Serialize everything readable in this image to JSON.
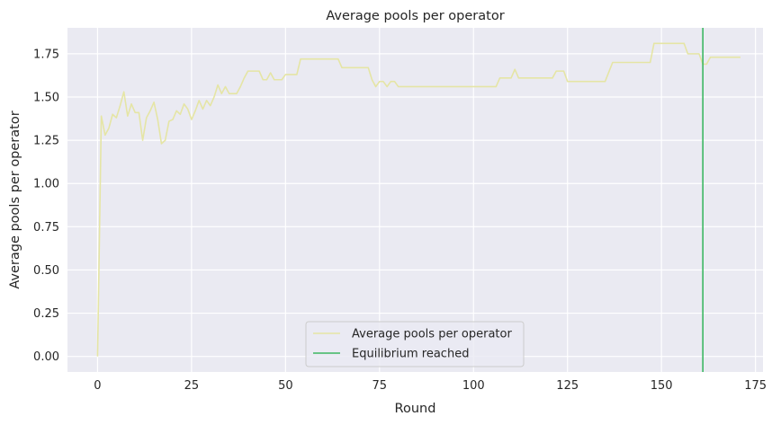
{
  "chart_data": {
    "type": "line",
    "title": "Average pools per operator",
    "xlabel": "Round",
    "ylabel": "Average pools per operator",
    "xlim": [
      -8,
      177
    ],
    "ylim": [
      -0.09,
      1.9
    ],
    "xticks": [
      0,
      25,
      50,
      75,
      100,
      125,
      150,
      175
    ],
    "yticks": [
      0.0,
      0.25,
      0.5,
      0.75,
      1.0,
      1.25,
      1.5,
      1.75
    ],
    "ytick_labels": [
      "0.00",
      "0.25",
      "0.50",
      "0.75",
      "1.00",
      "1.25",
      "1.50",
      "1.75"
    ],
    "grid": true,
    "legend_position": "bottom-center",
    "series": [
      {
        "name": "Average pools per operator",
        "kind": "line",
        "color": "#e5e5a5",
        "points": [
          [
            0,
            0.0
          ],
          [
            1,
            1.39
          ],
          [
            2,
            1.28
          ],
          [
            3,
            1.32
          ],
          [
            4,
            1.4
          ],
          [
            5,
            1.38
          ],
          [
            6,
            1.45
          ],
          [
            7,
            1.53
          ],
          [
            8,
            1.39
          ],
          [
            9,
            1.46
          ],
          [
            10,
            1.41
          ],
          [
            11,
            1.41
          ],
          [
            12,
            1.25
          ],
          [
            13,
            1.38
          ],
          [
            14,
            1.42
          ],
          [
            15,
            1.47
          ],
          [
            16,
            1.37
          ],
          [
            17,
            1.23
          ],
          [
            18,
            1.25
          ],
          [
            19,
            1.36
          ],
          [
            20,
            1.37
          ],
          [
            21,
            1.42
          ],
          [
            22,
            1.4
          ],
          [
            23,
            1.46
          ],
          [
            24,
            1.43
          ],
          [
            25,
            1.37
          ],
          [
            26,
            1.42
          ],
          [
            27,
            1.48
          ],
          [
            28,
            1.43
          ],
          [
            29,
            1.48
          ],
          [
            30,
            1.45
          ],
          [
            31,
            1.5
          ],
          [
            32,
            1.57
          ],
          [
            33,
            1.52
          ],
          [
            34,
            1.56
          ],
          [
            35,
            1.52
          ],
          [
            37,
            1.52
          ],
          [
            38,
            1.56
          ],
          [
            39,
            1.61
          ],
          [
            40,
            1.65
          ],
          [
            43,
            1.65
          ],
          [
            44,
            1.6
          ],
          [
            45,
            1.6
          ],
          [
            46,
            1.64
          ],
          [
            47,
            1.6
          ],
          [
            49,
            1.6
          ],
          [
            50,
            1.63
          ],
          [
            53,
            1.63
          ],
          [
            54,
            1.72
          ],
          [
            64,
            1.72
          ],
          [
            65,
            1.67
          ],
          [
            72,
            1.67
          ],
          [
            73,
            1.6
          ],
          [
            74,
            1.56
          ],
          [
            75,
            1.59
          ],
          [
            76,
            1.59
          ],
          [
            77,
            1.56
          ],
          [
            78,
            1.59
          ],
          [
            79,
            1.59
          ],
          [
            80,
            1.56
          ],
          [
            106,
            1.56
          ],
          [
            107,
            1.61
          ],
          [
            110,
            1.61
          ],
          [
            111,
            1.66
          ],
          [
            112,
            1.61
          ],
          [
            121,
            1.61
          ],
          [
            122,
            1.65
          ],
          [
            124,
            1.65
          ],
          [
            125,
            1.59
          ],
          [
            135,
            1.59
          ],
          [
            137,
            1.7
          ],
          [
            147,
            1.7
          ],
          [
            148,
            1.81
          ],
          [
            156,
            1.81
          ],
          [
            157,
            1.75
          ],
          [
            160,
            1.75
          ],
          [
            161,
            1.69
          ],
          [
            162,
            1.69
          ],
          [
            163,
            1.73
          ],
          [
            171,
            1.73
          ]
        ]
      },
      {
        "name": "Equilibrium reached",
        "kind": "vline",
        "color": "#3cb862",
        "x": 161
      }
    ]
  }
}
